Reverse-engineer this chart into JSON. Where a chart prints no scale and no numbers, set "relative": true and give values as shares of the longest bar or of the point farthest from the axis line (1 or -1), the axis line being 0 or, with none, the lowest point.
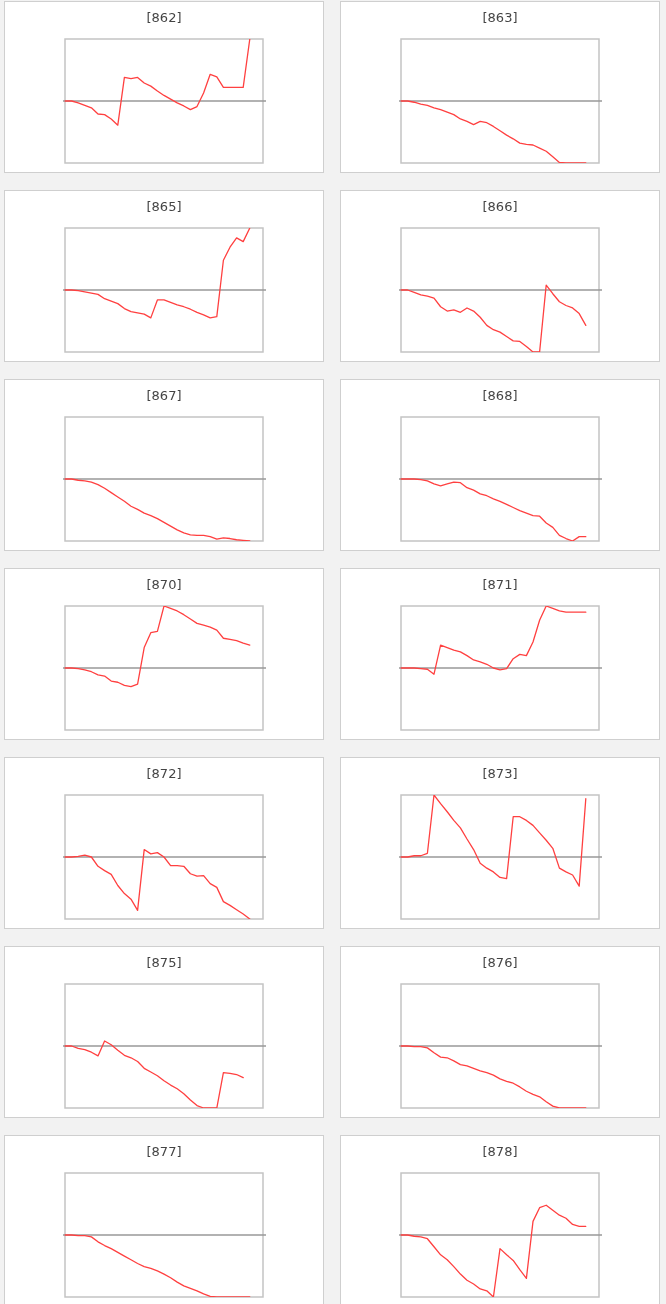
{
  "chart_data": [
    {
      "type": "line",
      "title": "[862]",
      "relative": true,
      "categories": [
        null,
        null,
        null,
        null,
        null,
        null,
        null,
        null,
        null,
        null,
        null,
        null,
        null,
        null,
        null,
        null,
        null,
        null,
        null,
        null,
        null,
        null,
        null,
        null,
        null,
        null,
        null,
        null,
        null,
        null,
        null
      ],
      "series": [
        {
          "color": "#ff4040",
          "values": [
            0,
            0,
            -0.03,
            -0.07,
            -0.11,
            -0.21,
            -0.22,
            -0.29,
            -0.39,
            0.38,
            0.36,
            0.38,
            0.29,
            0.24,
            0.16,
            0.09,
            0.03,
            -0.03,
            -0.08,
            -0.14,
            -0.09,
            0.13,
            0.43,
            0.39,
            0.22,
            0.22,
            0.22,
            0.22,
            1,
            null,
            null
          ]
        }
      ]
    },
    {
      "type": "line",
      "title": "[863]",
      "relative": true,
      "categories": [
        null,
        null,
        null,
        null,
        null,
        null,
        null,
        null,
        null,
        null,
        null,
        null,
        null,
        null,
        null,
        null,
        null,
        null,
        null,
        null,
        null,
        null,
        null,
        null,
        null,
        null,
        null,
        null,
        null,
        null,
        null
      ],
      "series": [
        {
          "color": "#ff4040",
          "values": [
            0,
            0,
            -0.02,
            -0.05,
            -0.07,
            -0.11,
            -0.14,
            -0.18,
            -0.22,
            -0.29,
            -0.33,
            -0.38,
            -0.33,
            -0.35,
            -0.41,
            -0.48,
            -0.55,
            -0.61,
            -0.68,
            -0.7,
            -0.71,
            -0.76,
            -0.81,
            -0.9,
            -0.99,
            -1,
            -1,
            -1,
            -1,
            null,
            null
          ]
        }
      ]
    },
    {
      "type": "line",
      "title": "[865]",
      "relative": true,
      "categories": [
        null,
        null,
        null,
        null,
        null,
        null,
        null,
        null,
        null,
        null,
        null,
        null,
        null,
        null,
        null,
        null,
        null,
        null,
        null,
        null,
        null,
        null,
        null,
        null,
        null,
        null,
        null,
        null,
        null,
        null,
        null
      ],
      "series": [
        {
          "color": "#ff4040",
          "values": [
            0,
            0,
            -0.01,
            -0.03,
            -0.05,
            -0.07,
            -0.14,
            -0.18,
            -0.22,
            -0.3,
            -0.35,
            -0.37,
            -0.39,
            -0.45,
            -0.16,
            -0.16,
            -0.2,
            -0.24,
            -0.27,
            -0.31,
            -0.36,
            -0.4,
            -0.45,
            -0.43,
            0.48,
            0.69,
            0.84,
            0.78,
            1,
            null,
            null
          ]
        }
      ]
    },
    {
      "type": "line",
      "title": "[866]",
      "relative": true,
      "categories": [
        null,
        null,
        null,
        null,
        null,
        null,
        null,
        null,
        null,
        null,
        null,
        null,
        null,
        null,
        null,
        null,
        null,
        null,
        null,
        null,
        null,
        null,
        null,
        null,
        null,
        null,
        null,
        null,
        null,
        null,
        null
      ],
      "series": [
        {
          "color": "#ff4040",
          "values": [
            0,
            0,
            -0.04,
            -0.08,
            -0.1,
            -0.13,
            -0.27,
            -0.34,
            -0.32,
            -0.36,
            -0.29,
            -0.34,
            -0.44,
            -0.57,
            -0.64,
            -0.68,
            -0.75,
            -0.82,
            -0.83,
            -0.91,
            -1,
            -1,
            0.08,
            -0.06,
            -0.19,
            -0.25,
            -0.29,
            -0.38,
            -0.57,
            null,
            null
          ]
        }
      ]
    },
    {
      "type": "line",
      "title": "[867]",
      "relative": true,
      "categories": [
        null,
        null,
        null,
        null,
        null,
        null,
        null,
        null,
        null,
        null,
        null,
        null,
        null,
        null,
        null,
        null,
        null,
        null,
        null,
        null,
        null,
        null,
        null,
        null,
        null,
        null,
        null,
        null,
        null,
        null,
        null
      ],
      "series": [
        {
          "color": "#ff4040",
          "values": [
            0,
            0,
            -0.02,
            -0.03,
            -0.05,
            -0.09,
            -0.15,
            -0.22,
            -0.29,
            -0.36,
            -0.44,
            -0.49,
            -0.55,
            -0.59,
            -0.64,
            -0.7,
            -0.76,
            -0.82,
            -0.87,
            -0.9,
            -0.91,
            -0.91,
            -0.93,
            -0.97,
            -0.95,
            -0.96,
            -0.98,
            -0.99,
            -1,
            null,
            null
          ]
        }
      ]
    },
    {
      "type": "line",
      "title": "[868]",
      "relative": true,
      "categories": [
        null,
        null,
        null,
        null,
        null,
        null,
        null,
        null,
        null,
        null,
        null,
        null,
        null,
        null,
        null,
        null,
        null,
        null,
        null,
        null,
        null,
        null,
        null,
        null,
        null,
        null,
        null,
        null,
        null,
        null,
        null
      ],
      "series": [
        {
          "color": "#ff4040",
          "values": [
            0,
            0,
            0,
            -0.01,
            -0.03,
            -0.08,
            -0.11,
            -0.08,
            -0.05,
            -0.06,
            -0.14,
            -0.18,
            -0.24,
            -0.27,
            -0.32,
            -0.36,
            -0.41,
            -0.46,
            -0.51,
            -0.55,
            -0.59,
            -0.6,
            -0.71,
            -0.78,
            -0.91,
            -0.96,
            -1,
            -0.93,
            -0.93,
            null,
            null
          ]
        }
      ]
    },
    {
      "type": "line",
      "title": "[870]",
      "relative": true,
      "categories": [
        null,
        null,
        null,
        null,
        null,
        null,
        null,
        null,
        null,
        null,
        null,
        null,
        null,
        null,
        null,
        null,
        null,
        null,
        null,
        null,
        null,
        null,
        null,
        null,
        null,
        null,
        null,
        null,
        null,
        null,
        null
      ],
      "series": [
        {
          "color": "#ff4040",
          "values": [
            0,
            0,
            -0.01,
            -0.03,
            -0.06,
            -0.11,
            -0.13,
            -0.21,
            -0.23,
            -0.28,
            -0.3,
            -0.26,
            0.33,
            0.57,
            0.59,
            1,
            0.96,
            0.92,
            0.86,
            0.79,
            0.72,
            0.69,
            0.66,
            0.61,
            0.48,
            0.46,
            0.44,
            0.4,
            0.37,
            null,
            null
          ]
        }
      ]
    },
    {
      "type": "line",
      "title": "[871]",
      "relative": true,
      "categories": [
        null,
        null,
        null,
        null,
        null,
        null,
        null,
        null,
        null,
        null,
        null,
        null,
        null,
        null,
        null,
        null,
        null,
        null,
        null,
        null,
        null,
        null,
        null,
        null,
        null,
        null,
        null,
        null,
        null,
        null,
        null
      ],
      "series": [
        {
          "color": "#ff4040",
          "values": [
            0,
            0,
            0,
            -0.01,
            -0.02,
            -0.1,
            0.37,
            0.33,
            0.29,
            0.26,
            0.2,
            0.13,
            0.1,
            0.06,
            0,
            -0.03,
            -0.01,
            0.15,
            0.22,
            0.2,
            0.42,
            0.77,
            1,
            0.96,
            0.92,
            0.9,
            0.9,
            0.9,
            0.9,
            null,
            null
          ]
        }
      ]
    },
    {
      "type": "line",
      "title": "[872]",
      "relative": true,
      "categories": [
        null,
        null,
        null,
        null,
        null,
        null,
        null,
        null,
        null,
        null,
        null,
        null,
        null,
        null,
        null,
        null,
        null,
        null,
        null,
        null,
        null,
        null,
        null,
        null,
        null,
        null,
        null,
        null,
        null,
        null,
        null
      ],
      "series": [
        {
          "color": "#ff4040",
          "values": [
            0,
            0,
            0.01,
            0.03,
            0,
            -0.15,
            -0.22,
            -0.28,
            -0.46,
            -0.59,
            -0.68,
            -0.86,
            0.12,
            0.05,
            0.07,
            0,
            -0.14,
            -0.14,
            -0.15,
            -0.27,
            -0.31,
            -0.3,
            -0.43,
            -0.49,
            -0.72,
            -0.78,
            -0.85,
            -0.92,
            -1,
            null,
            null
          ]
        }
      ]
    },
    {
      "type": "line",
      "title": "[873]",
      "relative": true,
      "categories": [
        null,
        null,
        null,
        null,
        null,
        null,
        null,
        null,
        null,
        null,
        null,
        null,
        null,
        null,
        null,
        null,
        null,
        null,
        null,
        null,
        null,
        null,
        null,
        null,
        null,
        null,
        null,
        null,
        null,
        null,
        null
      ],
      "series": [
        {
          "color": "#ff4040",
          "values": [
            0,
            0,
            0.02,
            0.02,
            0.06,
            1,
            0.86,
            0.73,
            0.59,
            0.47,
            0.29,
            0.12,
            -0.1,
            -0.18,
            -0.24,
            -0.33,
            -0.35,
            0.65,
            0.65,
            0.59,
            0.51,
            0.39,
            0.27,
            0.14,
            -0.18,
            -0.24,
            -0.29,
            -0.47,
            0.94,
            null,
            null
          ]
        }
      ]
    },
    {
      "type": "line",
      "title": "[875]",
      "relative": true,
      "categories": [
        null,
        null,
        null,
        null,
        null,
        null,
        null,
        null,
        null,
        null,
        null,
        null,
        null,
        null,
        null,
        null,
        null,
        null,
        null,
        null,
        null,
        null,
        null,
        null,
        null,
        null,
        null,
        null,
        null,
        null,
        null
      ],
      "series": [
        {
          "color": "#ff4040",
          "values": [
            0,
            0,
            -0.04,
            -0.06,
            -0.1,
            -0.16,
            0.08,
            0.02,
            -0.07,
            -0.15,
            -0.19,
            -0.25,
            -0.36,
            -0.42,
            -0.48,
            -0.56,
            -0.63,
            -0.69,
            -0.77,
            -0.87,
            -0.96,
            -1,
            -1,
            -1,
            -0.43,
            -0.44,
            -0.46,
            -0.51,
            null,
            null,
            null
          ]
        }
      ]
    },
    {
      "type": "line",
      "title": "[876]",
      "relative": true,
      "categories": [
        null,
        null,
        null,
        null,
        null,
        null,
        null,
        null,
        null,
        null,
        null,
        null,
        null,
        null,
        null,
        null,
        null,
        null,
        null,
        null,
        null,
        null,
        null,
        null,
        null,
        null,
        null,
        null,
        null,
        null,
        null
      ],
      "series": [
        {
          "color": "#ff4040",
          "values": [
            0,
            0,
            -0.01,
            -0.01,
            -0.03,
            -0.11,
            -0.18,
            -0.19,
            -0.24,
            -0.3,
            -0.32,
            -0.36,
            -0.4,
            -0.43,
            -0.47,
            -0.53,
            -0.57,
            -0.6,
            -0.66,
            -0.73,
            -0.78,
            -0.82,
            -0.9,
            -0.97,
            -1,
            -1,
            -1,
            -1,
            -1,
            null,
            null
          ]
        }
      ]
    },
    {
      "type": "line",
      "title": "[877]",
      "relative": true,
      "categories": [
        null,
        null,
        null,
        null,
        null,
        null,
        null,
        null,
        null,
        null,
        null,
        null,
        null,
        null,
        null,
        null,
        null,
        null,
        null,
        null,
        null,
        null,
        null,
        null,
        null,
        null,
        null,
        null,
        null,
        null,
        null
      ],
      "series": [
        {
          "color": "#ff4040",
          "values": [
            0,
            0,
            -0.01,
            -0.01,
            -0.03,
            -0.11,
            -0.17,
            -0.22,
            -0.28,
            -0.34,
            -0.4,
            -0.46,
            -0.51,
            -0.54,
            -0.58,
            -0.63,
            -0.69,
            -0.76,
            -0.82,
            -0.86,
            -0.9,
            -0.95,
            -0.99,
            -1,
            -1,
            -1,
            -1,
            -1,
            -1,
            null,
            null
          ]
        }
      ]
    },
    {
      "type": "line",
      "title": "[878]",
      "relative": true,
      "categories": [
        null,
        null,
        null,
        null,
        null,
        null,
        null,
        null,
        null,
        null,
        null,
        null,
        null,
        null,
        null,
        null,
        null,
        null,
        null,
        null,
        null,
        null,
        null,
        null,
        null,
        null,
        null,
        null,
        null,
        null,
        null
      ],
      "series": [
        {
          "color": "#ff4040",
          "values": [
            0,
            0,
            -0.02,
            -0.03,
            -0.06,
            -0.19,
            -0.32,
            -0.4,
            -0.51,
            -0.63,
            -0.73,
            -0.79,
            -0.87,
            -0.9,
            -1,
            -0.22,
            -0.32,
            -0.41,
            -0.56,
            -0.7,
            0.22,
            0.44,
            0.48,
            0.4,
            0.32,
            0.27,
            0.17,
            0.14,
            0.14,
            null,
            null
          ]
        }
      ]
    }
  ]
}
